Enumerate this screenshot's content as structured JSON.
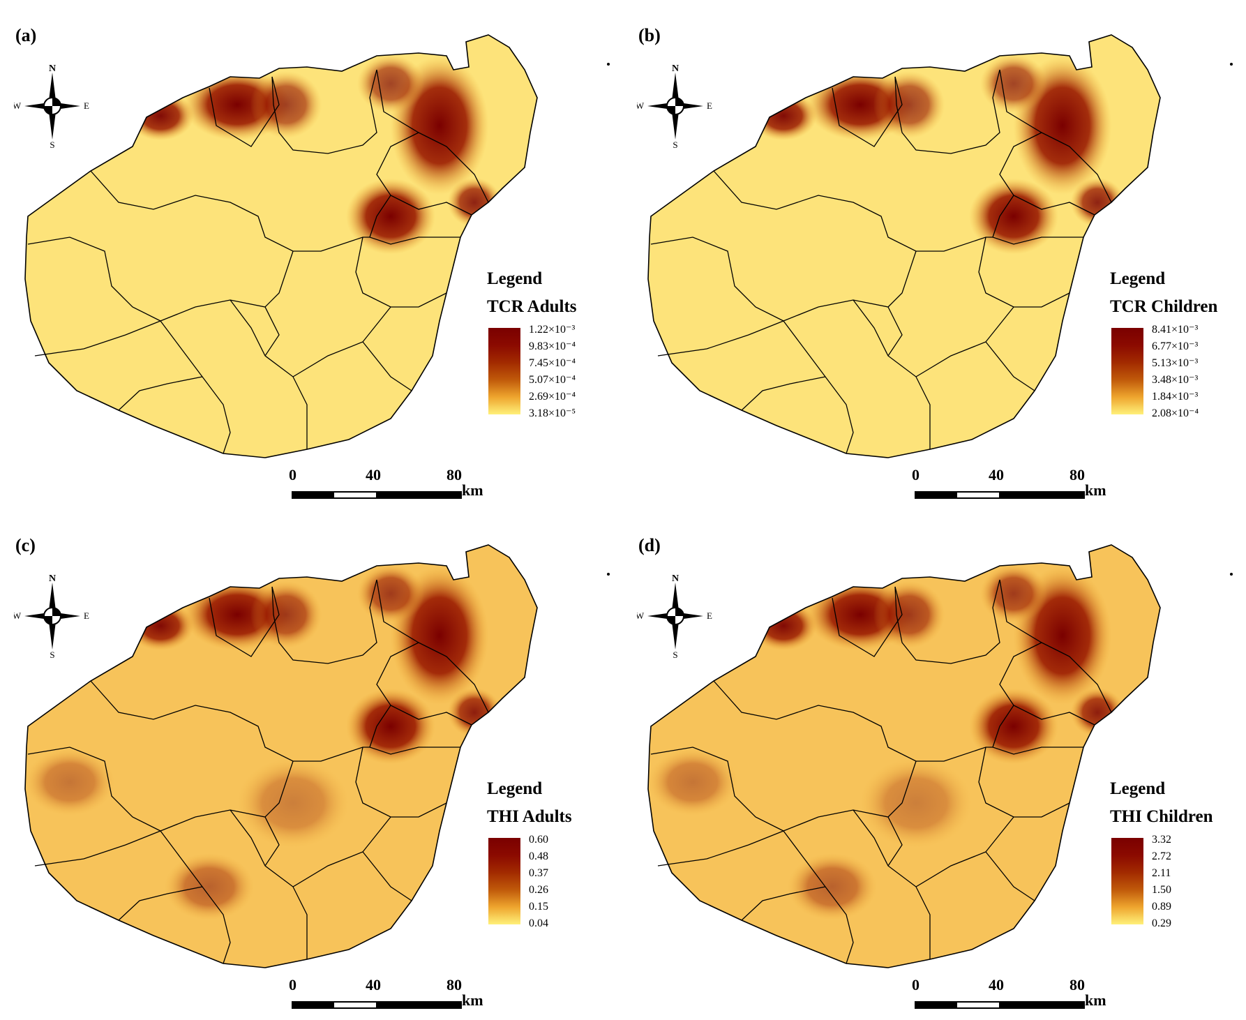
{
  "compass": {
    "n": "N",
    "s": "S",
    "e": "E",
    "w": "W"
  },
  "scale": {
    "ticks": [
      "0",
      "40",
      "80"
    ],
    "unit": "km"
  },
  "legend_heading": "Legend",
  "colors": {
    "low": "#fff17a",
    "mid": "#eea52e",
    "high": "#7a0000",
    "boundary": "#000000"
  },
  "panels": [
    {
      "label": "(a)",
      "title": "TCR Adults",
      "ticks": [
        "1.22×10⁻³",
        "9.83×10⁻⁴",
        "7.45×10⁻⁴",
        "5.07×10⁻⁴",
        "2.69×10⁻⁴",
        "3.18×10⁻⁵"
      ]
    },
    {
      "label": "(b)",
      "title": "TCR Children",
      "ticks": [
        "8.41×10⁻³",
        "6.77×10⁻³",
        "5.13×10⁻³",
        "3.48×10⁻³",
        "1.84×10⁻³",
        "2.08×10⁻⁴"
      ]
    },
    {
      "label": "(c)",
      "title": "THI Adults",
      "ticks": [
        "0.60",
        "0.48",
        "0.37",
        "0.26",
        "0.15",
        "0.04"
      ]
    },
    {
      "label": "(d)",
      "title": "THI Children",
      "ticks": [
        "3.32",
        "2.72",
        "2.11",
        "1.50",
        "0.89",
        "0.29"
      ]
    }
  ]
}
